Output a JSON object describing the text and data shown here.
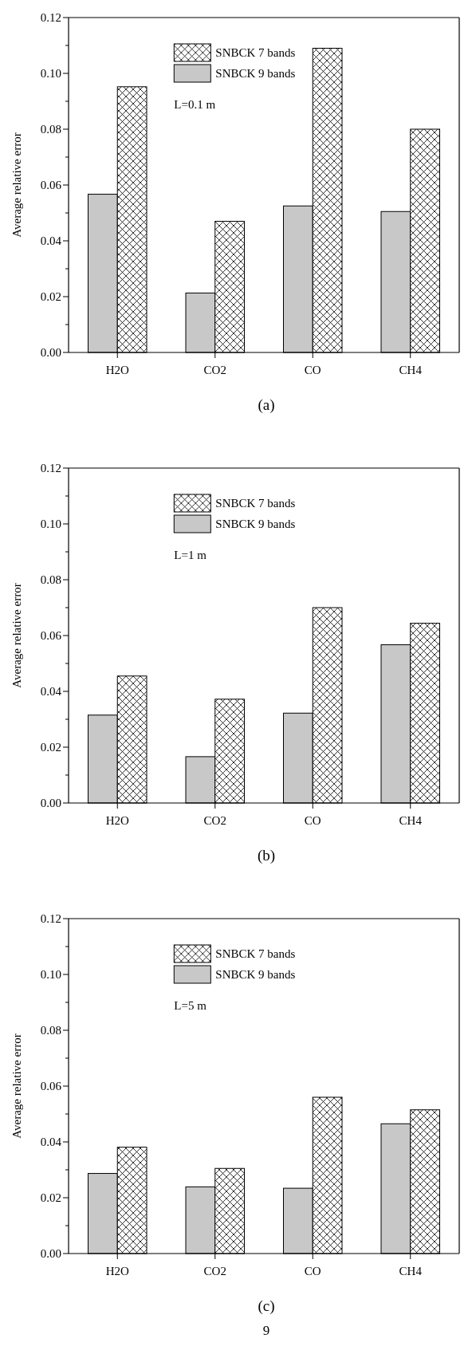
{
  "chart_data": [
    {
      "type": "bar",
      "categories": [
        "H2O",
        "CO2",
        "CO",
        "CH4"
      ],
      "ylabel": "Average relative error",
      "ylim": [
        0,
        0.12
      ],
      "yticks": [
        {
          "value": 0,
          "label": "0.00"
        },
        {
          "value": 0.01,
          "label": null
        },
        0.02,
        {
          "value": 0.03,
          "label": null
        },
        0.04,
        {
          "value": 0.05,
          "label": null
        },
        0.06,
        {
          "value": 0.07,
          "label": null
        },
        0.08,
        {
          "value": 0.09,
          "label": null
        },
        {
          "value": 0.1,
          "label": "0.10"
        },
        {
          "value": 0.11,
          "label": null
        },
        0.12
      ],
      "legend": "top left",
      "grid": false,
      "series": [
        {
          "name": "SNBCK 9 bands",
          "color": "#c8c8c8",
          "values": [
            0.0567,
            0.0213,
            0.0525,
            0.0505
          ]
        },
        {
          "name": "SNBCK 7 bands",
          "color": "#000000",
          "values": [
            0.0952,
            0.047,
            0.109,
            0.08
          ]
        }
      ],
      "annotations": [
        "L=0.1 m",
        "(a)"
      ]
    },
    {
      "type": "bar",
      "categories": [
        "H2O",
        "CO2",
        "CO",
        "CH4"
      ],
      "ylabel": "Average relative error",
      "ylim": [
        0,
        0.12
      ],
      "yticks": [
        {
          "value": 0,
          "label": "0.00"
        },
        {
          "value": 0.01,
          "label": null
        },
        0.02,
        {
          "value": 0.03,
          "label": null
        },
        0.04,
        {
          "value": 0.05,
          "label": null
        },
        0.06,
        {
          "value": 0.07,
          "label": null
        },
        0.08,
        {
          "value": 0.09,
          "label": null
        },
        {
          "value": 0.1,
          "label": "0.10"
        },
        {
          "value": 0.11,
          "label": null
        },
        0.12
      ],
      "legend": "top left",
      "grid": false,
      "series": [
        {
          "name": "SNBCK 9 bands",
          "color": "#c8c8c8",
          "values": [
            0.0315,
            0.0166,
            0.0322,
            0.0567
          ]
        },
        {
          "name": "SNBCK 7 bands",
          "color": "#000000",
          "values": [
            0.0455,
            0.0372,
            0.07,
            0.0644
          ]
        }
      ],
      "annotations": [
        "L=1 m",
        "(b)"
      ]
    },
    {
      "type": "bar",
      "categories": [
        "H2O",
        "CO2",
        "CO",
        "CH4"
      ],
      "ylabel": "Average relative error",
      "ylim": [
        0,
        0.12
      ],
      "yticks": [
        {
          "value": 0,
          "label": "0.00"
        },
        {
          "value": 0.01,
          "label": null
        },
        0.02,
        {
          "value": 0.03,
          "label": null
        },
        0.04,
        {
          "value": 0.05,
          "label": null
        },
        0.06,
        {
          "value": 0.07,
          "label": null
        },
        0.08,
        {
          "value": 0.09,
          "label": null
        },
        {
          "value": 0.1,
          "label": "0.10"
        },
        {
          "value": 0.11,
          "label": null
        },
        0.12
      ],
      "legend": "top left",
      "grid": false,
      "series": [
        {
          "name": "SNBCK 9 bands",
          "color": "#c8c8c8",
          "values": [
            0.0287,
            0.0239,
            0.0234,
            0.0465
          ]
        },
        {
          "name": "SNBCK 7 bands",
          "color": "#000000",
          "values": [
            0.0381,
            0.0305,
            0.056,
            0.0515
          ]
        }
      ],
      "annotations": [
        "L=5 m",
        "(c)",
        "9"
      ]
    }
  ]
}
